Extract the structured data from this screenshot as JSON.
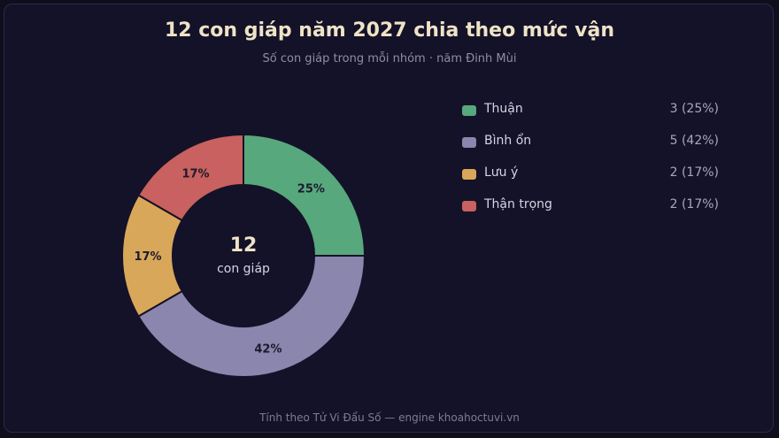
{
  "header": {
    "title": "12 con giáp năm 2027 chia theo mức vận",
    "subtitle": "Số con giáp trong mỗi nhóm · năm Đinh Mùi"
  },
  "chart_data": {
    "type": "pie",
    "variant": "donut",
    "title": "12 con giáp năm 2027 chia theo mức vận",
    "subtitle": "Số con giáp trong mỗi nhóm · năm Đinh Mùi",
    "center": {
      "value": "12",
      "label": "con giáp"
    },
    "legend_position": "right",
    "slices": [
      {
        "name": "Thuận",
        "value": 3,
        "percent_label": "25%",
        "legend_value": "3 (25%)",
        "color": "#58a87d"
      },
      {
        "name": "Bình ổn",
        "value": 5,
        "percent_label": "42%",
        "legend_value": "5 (42%)",
        "color": "#8a86ad"
      },
      {
        "name": "Lưu ý",
        "value": 2,
        "percent_label": "17%",
        "legend_value": "2 (17%)",
        "color": "#d9a759"
      },
      {
        "name": "Thận trọng",
        "value": 2,
        "percent_label": "17%",
        "legend_value": "2 (17%)",
        "color": "#c8615f"
      }
    ]
  },
  "footer": {
    "text": "Tính theo Tử Vi Đẩu Số — engine khoahoctuvi.vn"
  }
}
